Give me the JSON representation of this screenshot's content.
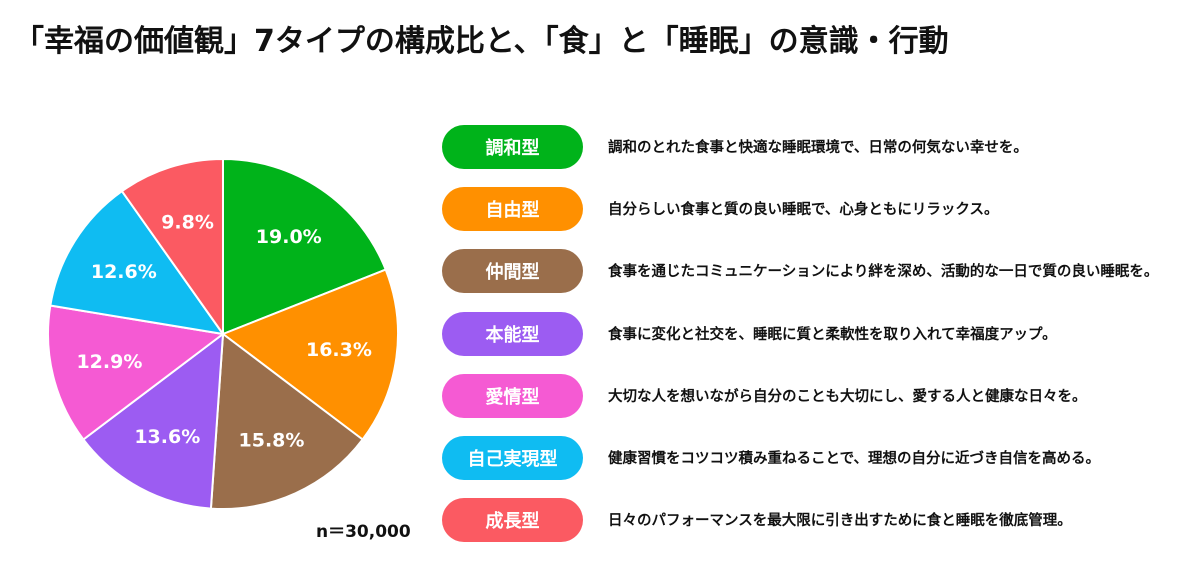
{
  "title": "「幸福の価値観」7タイプの構成比と、「食」と「睡眠」の意識・行動",
  "sample_size": "n＝30,000",
  "chart_data": {
    "type": "pie",
    "title": "「幸福の価値観」7タイプの構成比と、「食」と「睡眠」の意識・行動",
    "slices": [
      {
        "name": "調和型",
        "value": 19.0,
        "label": "19.0%",
        "color": "#00b31a",
        "description": "調和のとれた食事と快適な睡眠環境で、日常の何気ない幸せを。"
      },
      {
        "name": "自由型",
        "value": 16.3,
        "label": "16.3%",
        "color": "#ff9000",
        "description": "自分らしい食事と質の良い睡眠で、心身ともにリラックス。"
      },
      {
        "name": "仲間型",
        "value": 15.8,
        "label": "15.8%",
        "color": "#9a6e4b",
        "description": "食事を通じたコミュニケーションにより絆を深め、活動的な一日で質の良い睡眠を。"
      },
      {
        "name": "本能型",
        "value": 13.6,
        "label": "13.6%",
        "color": "#9c5cf2",
        "description": "食事に変化と社交を、睡眠に質と柔軟性を取り入れて幸福度アップ。"
      },
      {
        "name": "愛情型",
        "value": 12.9,
        "label": "12.9%",
        "color": "#f55ad3",
        "description": "大切な人を想いながら自分のことも大切にし、愛する人と健康な日々を。"
      },
      {
        "name": "自己実現型",
        "value": 12.6,
        "label": "12.6%",
        "color": "#0fbcf2",
        "description": "健康習慣をコツコツ積み重ねることで、理想の自分に近づき自信を高める。"
      },
      {
        "name": "成長型",
        "value": 9.8,
        "label": "9.8%",
        "color": "#fb5a62",
        "description": "日々のパフォーマンスを最大限に引き出すために食と睡眠を徹底管理。"
      }
    ]
  }
}
